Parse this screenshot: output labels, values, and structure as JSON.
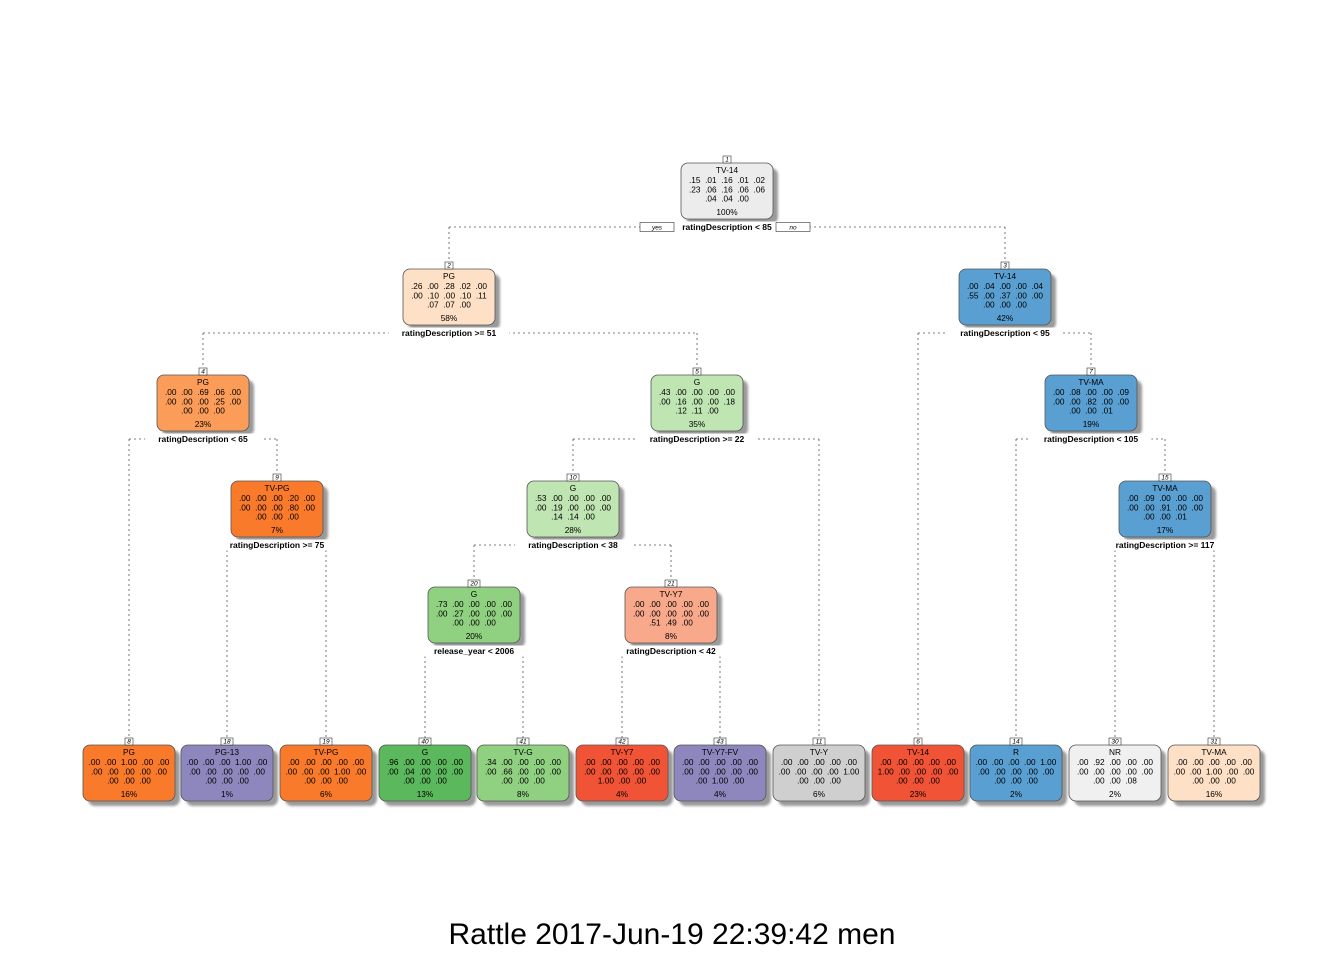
{
  "caption": "Rattle 2017-Jun-19 22:39:42 men",
  "edge_labels": {
    "yes": "yes",
    "no": "no"
  },
  "colors": {
    "gray_light": "#ececec",
    "peach": "#fde0c5",
    "orange": "#fa7a2c",
    "orange_mid": "#fb9d59",
    "green_light": "#bfe5b3",
    "green_mid": "#90d181",
    "green_dark": "#5cb85c",
    "salmon": "#f8a98c",
    "red": "#f05336",
    "purple": "#8e87bd",
    "blue": "#5a9fd1",
    "gray_mid": "#cfcfcf",
    "gray_pale": "#f0f0f0"
  },
  "nodes": [
    {
      "id": "1",
      "label": "TV-14",
      "rows": [
        ".15  .01  .16  .01  .02",
        ".23  .06  .16  .06  .06",
        ".04  .04  .00"
      ],
      "pct": "100%",
      "split": "ratingDescription < 85",
      "color": "#ececec"
    },
    {
      "id": "2",
      "label": "PG",
      "rows": [
        ".26  .00  .28  .02  .00",
        ".00  .10  .00  .10  .11",
        ".07  .07  .00"
      ],
      "pct": "58%",
      "split": "ratingDescription >= 51",
      "color": "#fde0c5"
    },
    {
      "id": "3",
      "label": "TV-14",
      "rows": [
        ".00  .04  .00  .00  .04",
        ".55  .00  .37  .00  .00",
        ".00  .00  .00"
      ],
      "pct": "42%",
      "split": "ratingDescription < 95",
      "color": "#5a9fd1"
    },
    {
      "id": "4",
      "label": "PG",
      "rows": [
        ".00  .00  .69  .06  .00",
        ".00  .00  .00  .25  .00",
        ".00  .00  .00"
      ],
      "pct": "23%",
      "split": "ratingDescription < 65",
      "color": "#fb9d59"
    },
    {
      "id": "5",
      "label": "G",
      "rows": [
        ".43  .00  .00  .00  .00",
        ".00  .16  .00  .00  .18",
        ".12  .11  .00"
      ],
      "pct": "35%",
      "split": "ratingDescription >= 22",
      "color": "#bfe5b3"
    },
    {
      "id": "7",
      "label": "TV-MA",
      "rows": [
        ".00  .08  .00  .00  .09",
        ".00  .00  .82  .00  .00",
        ".00  .00  .01"
      ],
      "pct": "19%",
      "split": "ratingDescription < 105",
      "color": "#5a9fd1"
    },
    {
      "id": "9",
      "label": "TV-PG",
      "rows": [
        ".00  .00  .00  .20  .00",
        ".00  .00  .00  .80  .00",
        ".00  .00  .00"
      ],
      "pct": "7%",
      "split": "ratingDescription >= 75",
      "color": "#fa7a2c"
    },
    {
      "id": "10",
      "label": "G",
      "rows": [
        ".53  .00  .00  .00  .00",
        ".00  .19  .00  .00  .00",
        ".14  .14  .00"
      ],
      "pct": "28%",
      "split": "ratingDescription < 38",
      "color": "#bfe5b3"
    },
    {
      "id": "15",
      "label": "TV-MA",
      "rows": [
        ".00  .09  .00  .00  .00",
        ".00  .00  .91  .00  .00",
        ".00  .00  .01"
      ],
      "pct": "17%",
      "split": "ratingDescription >= 117",
      "color": "#5a9fd1"
    },
    {
      "id": "20",
      "label": "G",
      "rows": [
        ".73  .00  .00  .00  .00",
        ".00  .27  .00  .00  .00",
        ".00  .00  .00"
      ],
      "pct": "20%",
      "split": "release_year < 2006",
      "color": "#90d181"
    },
    {
      "id": "21",
      "label": "TV-Y7",
      "rows": [
        ".00  .00  .00  .00  .00",
        ".00  .00  .00  .00  .00",
        ".51  .49  .00"
      ],
      "pct": "8%",
      "split": "ratingDescription < 42",
      "color": "#f8a98c"
    },
    {
      "id": "8",
      "label": "PG",
      "rows": [
        ".00  .00  1.00  .00  .00",
        ".00  .00  .00  .00  .00",
        ".00  .00  .00"
      ],
      "pct": "16%",
      "split": "",
      "color": "#fa7a2c"
    },
    {
      "id": "18",
      "label": "PG-13",
      "rows": [
        ".00  .00  .00  1.00  .00",
        ".00  .00  .00  .00  .00",
        ".00  .00  .00"
      ],
      "pct": "1%",
      "split": "",
      "color": "#8e87bd"
    },
    {
      "id": "19",
      "label": "TV-PG",
      "rows": [
        ".00  .00  .00  .00  .00",
        ".00  .00  .00  1.00  .00",
        ".00  .00  .00"
      ],
      "pct": "6%",
      "split": "",
      "color": "#fa7a2c"
    },
    {
      "id": "40",
      "label": "G",
      "rows": [
        ".96  .00  .00  .00  .00",
        ".00  .04  .00  .00  .00",
        ".00  .00  .00"
      ],
      "pct": "13%",
      "split": "",
      "color": "#5cb85c"
    },
    {
      "id": "41",
      "label": "TV-G",
      "rows": [
        ".34  .00  .00  .00  .00",
        ".00  .66  .00  .00  .00",
        ".00  .00  .00"
      ],
      "pct": "8%",
      "split": "",
      "color": "#90d181"
    },
    {
      "id": "42",
      "label": "TV-Y7",
      "rows": [
        ".00  .00  .00  .00  .00",
        ".00  .00  .00  .00  .00",
        "1.00  .00  .00"
      ],
      "pct": "4%",
      "split": "",
      "color": "#f05336"
    },
    {
      "id": "43",
      "label": "TV-Y7-FV",
      "rows": [
        ".00  .00  .00  .00  .00",
        ".00  .00  .00  .00  .00",
        ".00  1.00  .00"
      ],
      "pct": "4%",
      "split": "",
      "color": "#8e87bd"
    },
    {
      "id": "11",
      "label": "TV-Y",
      "rows": [
        ".00  .00  .00  .00  .00",
        ".00  .00  .00  .00  1.00",
        ".00  .00  .00"
      ],
      "pct": "6%",
      "split": "",
      "color": "#cfcfcf"
    },
    {
      "id": "6",
      "label": "TV-14",
      "rows": [
        ".00  .00  .00  .00  .00",
        "1.00  .00  .00  .00  .00",
        ".00  .00  .00"
      ],
      "pct": "23%",
      "split": "",
      "color": "#f05336"
    },
    {
      "id": "14",
      "label": "R",
      "rows": [
        ".00  .00  .00  .00  1.00",
        ".00  .00  .00  .00  .00",
        ".00  .00  .00"
      ],
      "pct": "2%",
      "split": "",
      "color": "#5a9fd1"
    },
    {
      "id": "30",
      "label": "NR",
      "rows": [
        ".00  .92  .00  .00  .00",
        ".00  .00  .00  .00  .00",
        ".00  .00  .08"
      ],
      "pct": "2%",
      "split": "",
      "color": "#f0f0f0"
    },
    {
      "id": "31",
      "label": "TV-MA",
      "rows": [
        ".00  .00  .00  .00  .00",
        ".00  .00  1.00  .00  .00",
        ".00  .00  .00"
      ],
      "pct": "16%",
      "split": "",
      "color": "#fde0c5"
    }
  ],
  "edges": [
    [
      "1",
      "2"
    ],
    [
      "1",
      "3"
    ],
    [
      "2",
      "4"
    ],
    [
      "2",
      "5"
    ],
    [
      "3",
      "6"
    ],
    [
      "3",
      "7"
    ],
    [
      "4",
      "8"
    ],
    [
      "4",
      "9"
    ],
    [
      "9",
      "18"
    ],
    [
      "9",
      "19"
    ],
    [
      "5",
      "10"
    ],
    [
      "5",
      "11"
    ],
    [
      "10",
      "20"
    ],
    [
      "10",
      "21"
    ],
    [
      "20",
      "40"
    ],
    [
      "20",
      "41"
    ],
    [
      "21",
      "42"
    ],
    [
      "21",
      "43"
    ],
    [
      "7",
      "14"
    ],
    [
      "7",
      "15"
    ],
    [
      "15",
      "30"
    ],
    [
      "15",
      "31"
    ]
  ]
}
